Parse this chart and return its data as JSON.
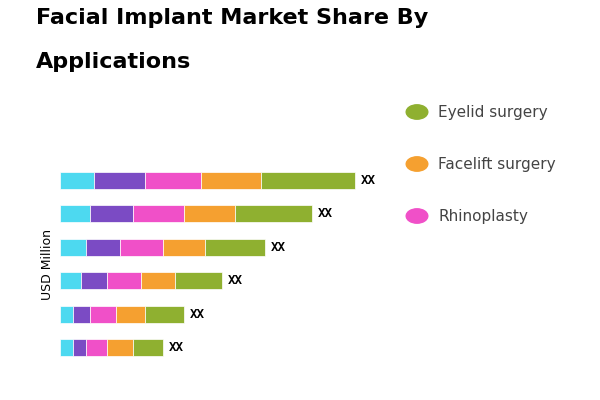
{
  "title_line1": "Facial Implant Market Share By",
  "title_line2": "Applications",
  "ylabel": "USD Million",
  "bar_label": "XX",
  "colors": [
    "#4dd9f0",
    "#7b4bc4",
    "#f050c8",
    "#f5a030",
    "#8fb030"
  ],
  "legend_items": [
    {
      "label": "Eyelid surgery",
      "color": "#8fb030"
    },
    {
      "label": "Facelift surgery",
      "color": "#f5a030"
    },
    {
      "label": "Rhinoplasty",
      "color": "#f050c8"
    }
  ],
  "bars": [
    [
      8,
      12,
      13,
      14,
      22
    ],
    [
      7,
      10,
      12,
      12,
      18
    ],
    [
      6,
      8,
      10,
      10,
      14
    ],
    [
      5,
      6,
      8,
      8,
      11
    ],
    [
      3,
      4,
      6,
      7,
      9
    ],
    [
      3,
      3,
      5,
      6,
      7
    ]
  ],
  "num_bars": 6,
  "background_color": "#ffffff",
  "title_fontsize": 16,
  "label_fontsize": 9,
  "legend_fontsize": 11,
  "bar_height": 0.5
}
